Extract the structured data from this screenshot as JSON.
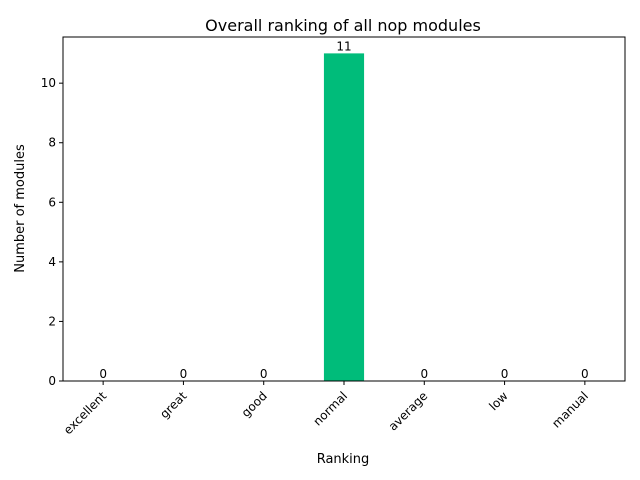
{
  "chart_data": {
    "type": "bar",
    "title": "Overall ranking of all nop modules",
    "xlabel": "Ranking",
    "ylabel": "Number of modules",
    "categories": [
      "excellent",
      "great",
      "good",
      "normal",
      "average",
      "low",
      "manual"
    ],
    "values": [
      0,
      0,
      0,
      11,
      0,
      0,
      0
    ],
    "ylim": [
      0,
      11.55
    ],
    "yticks": [
      0,
      2,
      4,
      6,
      8,
      10
    ],
    "bar_color": "#00bc7a",
    "grid": false,
    "legend": "none"
  }
}
